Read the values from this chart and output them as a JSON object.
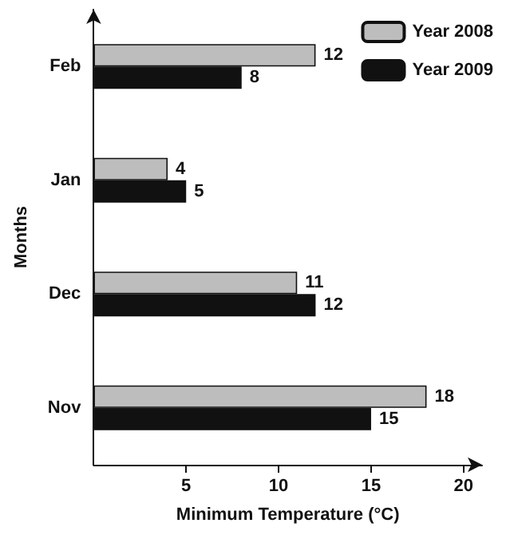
{
  "chart_data": {
    "type": "bar",
    "orientation": "horizontal",
    "xlabel": "Minimum Temperature (°C)",
    "ylabel": "Months",
    "categories": [
      "Feb",
      "Jan",
      "Dec",
      "Nov"
    ],
    "series": [
      {
        "name": "Year 2008",
        "color": "#bdbdbd",
        "values": [
          12,
          4,
          11,
          18
        ]
      },
      {
        "name": "Year 2009",
        "color": "#111111",
        "values": [
          8,
          5,
          12,
          15
        ]
      }
    ],
    "xlim": [
      0,
      21
    ],
    "xticks": [
      5,
      10,
      15,
      20
    ],
    "data_labels": true,
    "legend": "top right",
    "grid": false
  }
}
